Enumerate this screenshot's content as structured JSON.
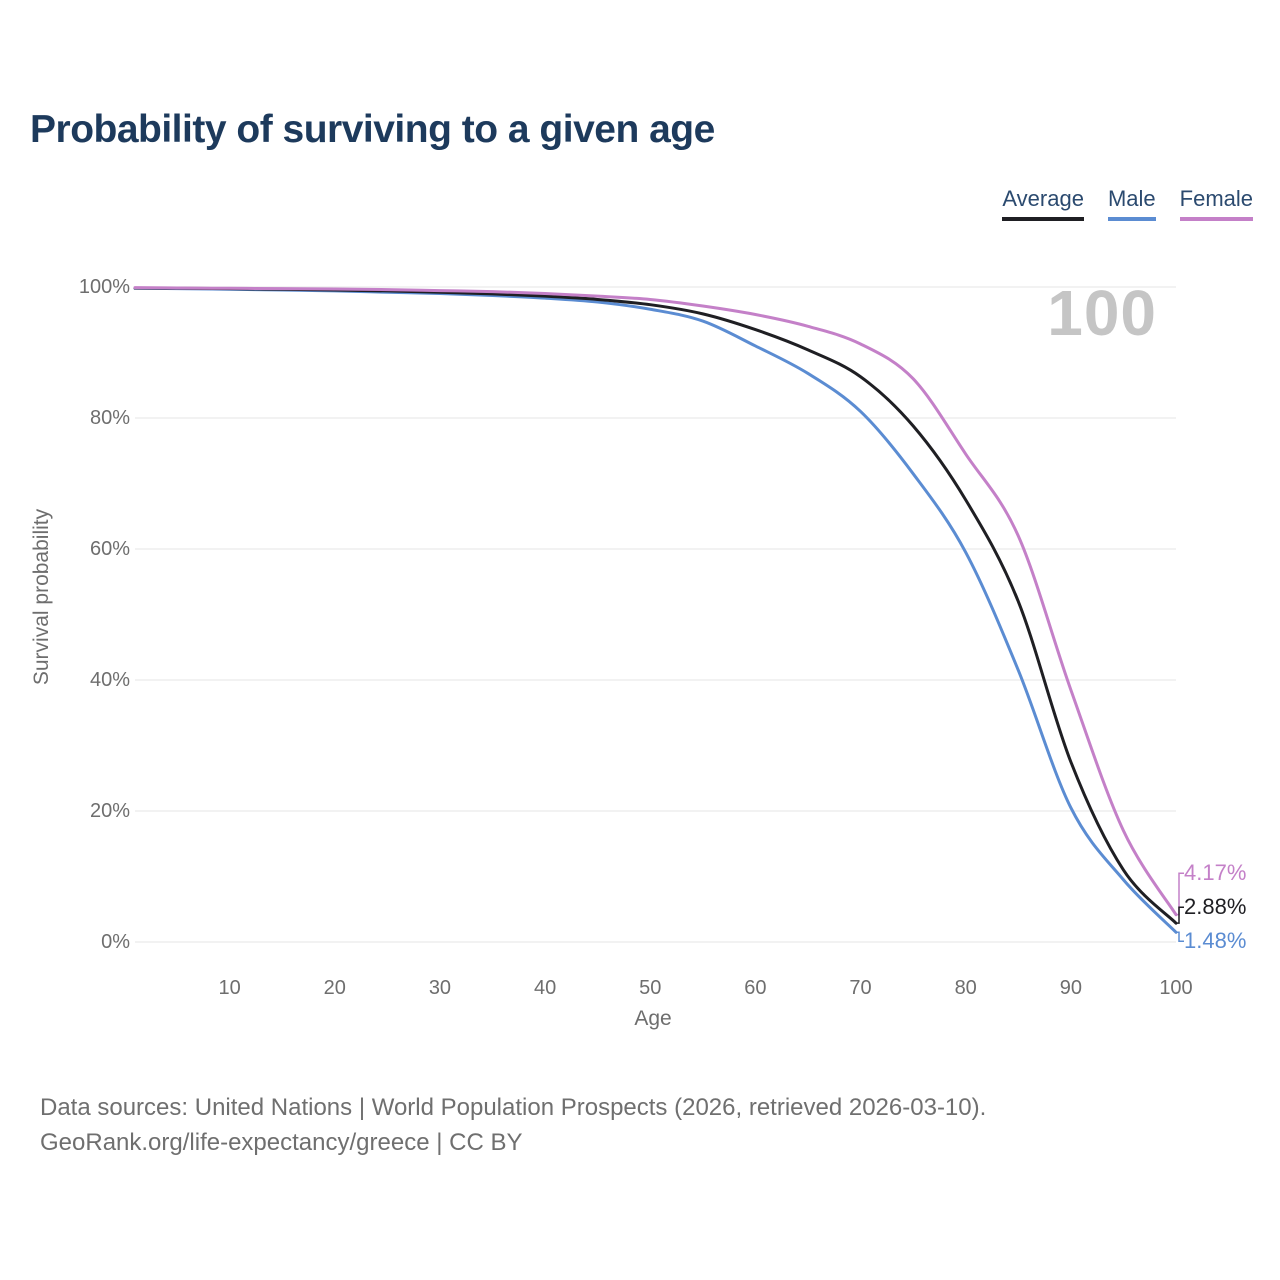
{
  "title": "Probability of surviving to a given age",
  "watermark": "100",
  "legend": {
    "position": "top-right",
    "items": [
      "Average",
      "Male",
      "Female"
    ]
  },
  "chart_data": {
    "type": "line",
    "title": "Probability of surviving to a given age",
    "xlabel": "Age",
    "ylabel": "Survival probability",
    "xlim": [
      1,
      100
    ],
    "ylim": [
      0,
      100
    ],
    "grid": "horizontal",
    "x_ticks": [
      10,
      20,
      30,
      40,
      50,
      60,
      70,
      80,
      90,
      100
    ],
    "y_ticks": [
      100,
      80,
      60,
      40,
      20,
      0
    ],
    "y_tick_suffix": "%",
    "ages": [
      1,
      5,
      10,
      15,
      20,
      25,
      30,
      35,
      40,
      45,
      50,
      55,
      60,
      65,
      70,
      75,
      80,
      85,
      90,
      95,
      100
    ],
    "series": [
      {
        "name": "Male",
        "color": "#5b8cd2",
        "end_label": "1.48%",
        "end_value": 1.48,
        "values": [
          99.8,
          99.75,
          99.65,
          99.55,
          99.4,
          99.2,
          99.0,
          98.7,
          98.3,
          97.7,
          96.6,
          94.8,
          91.0,
          86.8,
          81.0,
          71.5,
          59.5,
          41.5,
          20.5,
          9.5,
          1.48
        ]
      },
      {
        "name": "Average",
        "color": "#1f1f23",
        "end_label": "2.88%",
        "end_value": 2.88,
        "values": [
          99.85,
          99.8,
          99.75,
          99.65,
          99.55,
          99.4,
          99.2,
          98.95,
          98.6,
          98.1,
          97.3,
          95.9,
          93.5,
          90.4,
          86.3,
          78.8,
          67.5,
          52.0,
          27.5,
          11.0,
          2.88
        ]
      },
      {
        "name": "Female",
        "color": "#c480c8",
        "end_label": "4.17%",
        "end_value": 4.17,
        "values": [
          99.9,
          99.85,
          99.8,
          99.75,
          99.7,
          99.6,
          99.45,
          99.3,
          99.0,
          98.6,
          98.1,
          97.1,
          95.8,
          94.0,
          91.3,
          86.0,
          74.5,
          62.0,
          38.5,
          17.0,
          4.17
        ]
      }
    ],
    "colors": {
      "grid": "#ebebeb",
      "axis_text": "#6e6e6e",
      "title_text": "#1d3a5c",
      "legend_text": "#2b4a6f",
      "watermark": "#c5c5c5",
      "footer_text": "#6f6f6f"
    }
  },
  "footer": {
    "line1": "Data sources: United Nations | World Population Prospects (2026, retrieved 2026-03-10).",
    "line2": "GeoRank.org/life-expectancy/greece | CC BY"
  }
}
